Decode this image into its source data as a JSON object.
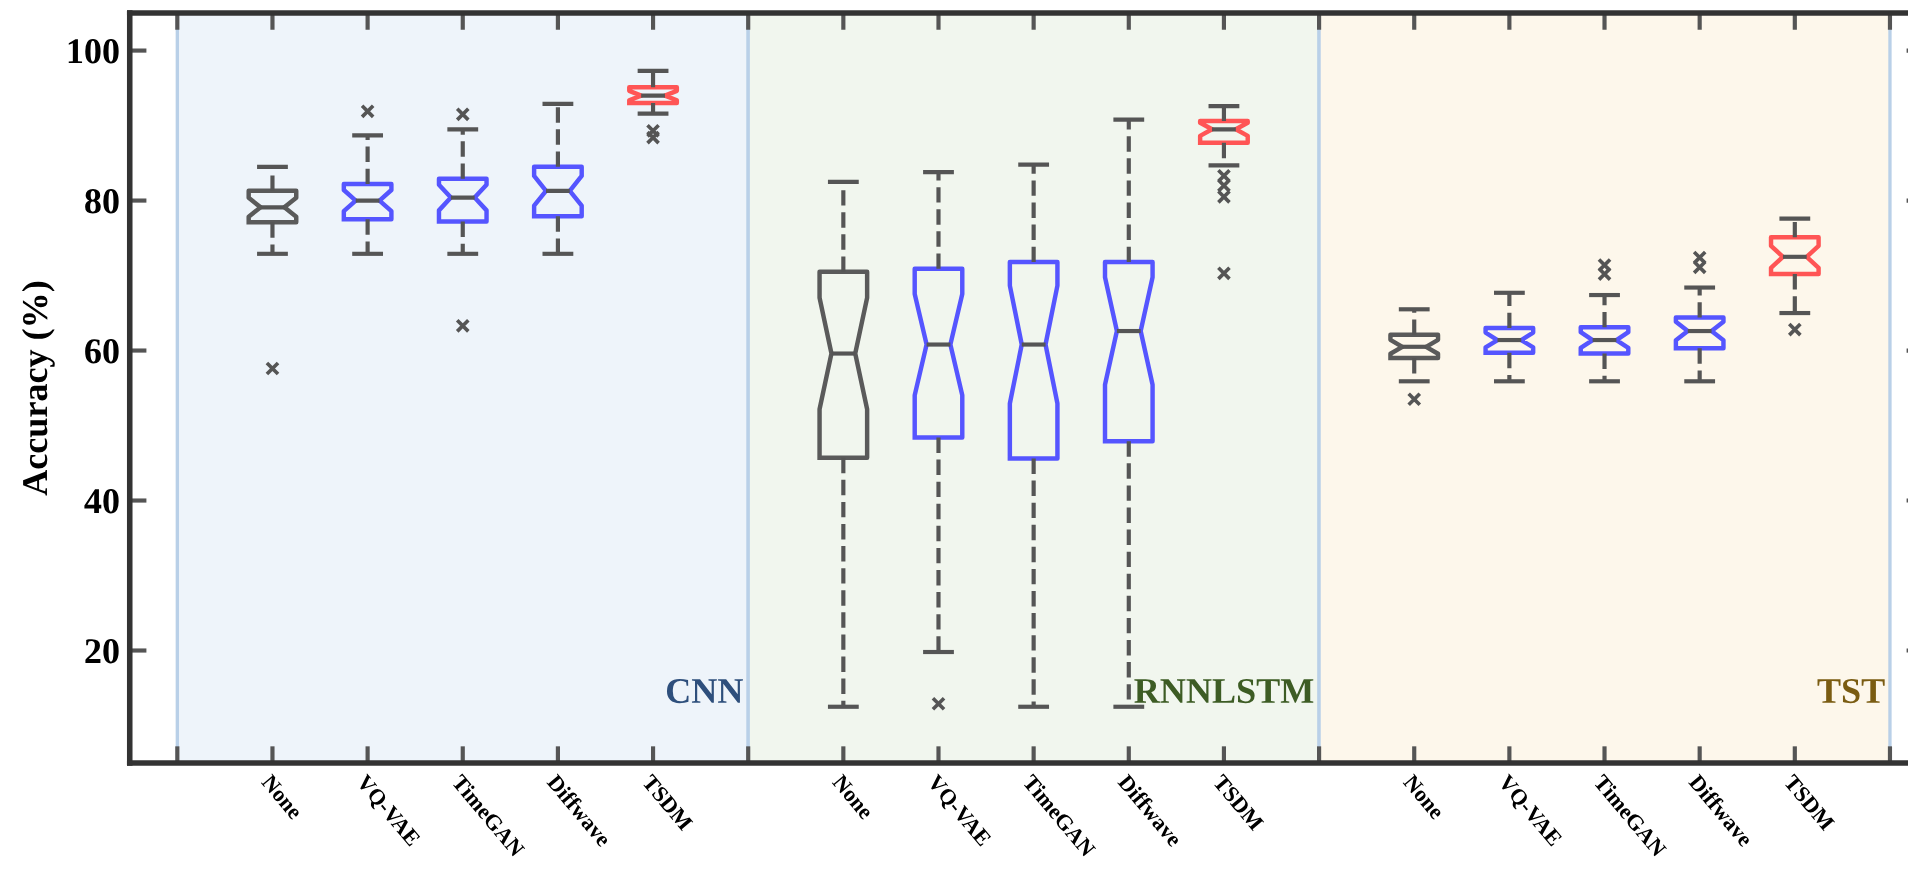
{
  "chart_data": {
    "type": "box",
    "ylabel": "Accuracy (%)",
    "categories": [
      null,
      "None",
      "VQ-VAE",
      "TimeGAN",
      "Diffwave",
      "TSDM",
      null,
      "None",
      "VQ-VAE",
      "TimeGAN",
      "Diffwave",
      "TSDM",
      null,
      "None",
      "VQ-VAE",
      "TimeGAN",
      "Diffwave",
      "TSDM",
      null
    ],
    "boxes": [
      null,
      {
        "low": 72.9,
        "q1": 77.1,
        "median": 79.1,
        "q3": 81.3,
        "high": 84.5,
        "outliers": [
          57.6
        ]
      },
      {
        "low": 72.9,
        "q1": 77.5,
        "median": 80.0,
        "q3": 82.2,
        "high": 88.7,
        "outliers": [
          91.9
        ]
      },
      {
        "low": 72.9,
        "q1": 77.2,
        "median": 80.4,
        "q3": 82.9,
        "high": 89.5,
        "outliers": [
          91.5,
          63.3
        ]
      },
      {
        "low": 72.9,
        "q1": 77.9,
        "median": 81.3,
        "q3": 84.5,
        "high": 92.9
      },
      {
        "low": 91.6,
        "q1": 93.0,
        "median": 94.0,
        "q3": 95.1,
        "high": 97.3,
        "outliers": [
          89.3,
          88.4
        ]
      },
      null,
      {
        "low": 12.5,
        "q1": 45.7,
        "median": 59.6,
        "q3": 70.5,
        "high": 82.5
      },
      {
        "low": 19.8,
        "q1": 48.4,
        "median": 60.8,
        "q3": 70.9,
        "high": 83.8,
        "outliers": [
          12.9
        ]
      },
      {
        "low": 12.5,
        "q1": 45.6,
        "median": 60.8,
        "q3": 71.8,
        "high": 84.8
      },
      {
        "low": 12.5,
        "q1": 47.9,
        "median": 62.6,
        "q3": 71.8,
        "high": 90.8
      },
      {
        "low": 84.7,
        "q1": 87.7,
        "median": 89.5,
        "q3": 90.6,
        "high": 92.6,
        "outliers": [
          83.3,
          82.0,
          80.5,
          70.3
        ]
      },
      null,
      {
        "low": 55.9,
        "q1": 59.0,
        "median": 60.5,
        "q3": 62.1,
        "high": 65.5,
        "outliers": [
          53.5
        ]
      },
      {
        "low": 55.9,
        "q1": 59.7,
        "median": 61.4,
        "q3": 63.0,
        "high": 67.7
      },
      {
        "low": 55.9,
        "q1": 59.6,
        "median": 61.4,
        "q3": 63.1,
        "high": 67.4,
        "outliers": [
          71.4,
          70.2
        ]
      },
      {
        "low": 55.9,
        "q1": 60.3,
        "median": 62.6,
        "q3": 64.4,
        "high": 68.4,
        "outliers": [
          72.4,
          71.1
        ]
      },
      {
        "low": 65.0,
        "q1": 70.2,
        "median": 72.5,
        "q3": 75.1,
        "high": 77.6,
        "outliers": [
          62.8
        ]
      },
      null
    ],
    "colors": [
      null,
      "#5a5a5a",
      "#5555ff",
      "#5555ff",
      "#5555ff",
      "#ff5555",
      null,
      "#5a5a5a",
      "#5555ff",
      "#5555ff",
      "#5555ff",
      "#ff5555",
      null,
      "#5a5a5a",
      "#5555ff",
      "#5555ff",
      "#5555ff",
      "#ff5555",
      null
    ],
    "marker": "cross",
    "ylim": [
      5,
      105
    ],
    "yticks": [
      20,
      40,
      60,
      80,
      100
    ],
    "annotations": [
      "CNN",
      "RNNLSTM",
      "TST"
    ]
  }
}
